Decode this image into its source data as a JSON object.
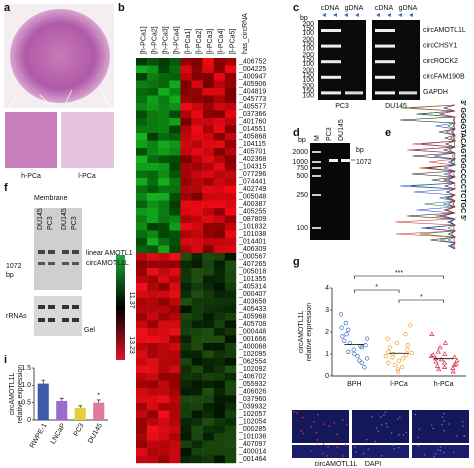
{
  "panels": [
    "a",
    "b",
    "c",
    "d",
    "e",
    "f",
    "g",
    "h",
    "i"
  ],
  "a": {
    "insets": [
      "h-PCa",
      "l-PCa"
    ]
  },
  "b": {
    "columns": [
      "[h-PCa1]",
      "[h-PCa2]",
      "[h-PCa3]",
      "[h-PCa4]",
      "[l-PCa1]",
      "[l-PCa2]",
      "[l-PCa3]",
      "[l-PCa4]",
      "[l-PCa5]"
    ],
    "header": "has_circRNA",
    "rows": [
      "_406752",
      "_004225",
      "_400947",
      "_405906",
      "_404819",
      "_045773",
      "_405577",
      "_037366",
      "_401760",
      "_014551",
      "_405868",
      "_104115",
      "_405701",
      "_402368",
      "_104315",
      "_077296",
      "_074441",
      "_402749",
      "_005048",
      "_400387",
      "_405255",
      "_087809",
      "_101832",
      "_101038",
      "_014401",
      "_406309",
      "_000567",
      "_407265",
      "_005018",
      "_101355",
      "_405314",
      "_000407",
      "_403658",
      "_405433",
      "_405968",
      "_405708",
      "_000448",
      "_001666",
      "_400068",
      "_102095",
      "_062554",
      "_102092",
      "_406702",
      "_055932",
      "_406026",
      "_037960",
      "_039932",
      "_102057",
      "_102054",
      "_000285",
      "_101036",
      "_407097",
      "_400014",
      "_001464"
    ],
    "scale": [
      "11.37",
      "13.23"
    ]
  },
  "c": {
    "lanes": [
      "cDNA",
      "gDNA"
    ],
    "unit": "bp",
    "ladder": [
      "200",
      "150",
      "100"
    ],
    "genes": [
      "circAMOTL1L",
      "circCHSY1",
      "circROCK2",
      "circFAM190B",
      "GAPDH"
    ],
    "cells": [
      "PC3",
      "DU145"
    ]
  },
  "d": {
    "unit": "bp",
    "ladder": [
      "2000",
      "1000",
      "750",
      "500",
      "250",
      "100"
    ],
    "lanes": [
      "M",
      "PC3",
      "DU145"
    ],
    "band": "1072"
  },
  "e": {
    "sequence": "3' GGGGTACAGTGGCCCCTCTGC 5'"
  },
  "f": {
    "title": "Membrane",
    "lanes": [
      "DU145",
      "PC3",
      "DU145",
      "PC3"
    ],
    "size": "1072",
    "unit": "bp",
    "bands": [
      "linear AMOTL1",
      "circAMOTL1L"
    ],
    "rrna": "rRNAs",
    "gel": "Gel"
  },
  "h": {
    "stains": [
      "circAMOTL1L",
      "DAPI"
    ]
  },
  "chart_data": [
    {
      "type": "strip",
      "ylabel": [
        "circAMOTL1L",
        "relative expression"
      ],
      "categories": [
        "BPH",
        "l-PCa",
        "h-PCa"
      ],
      "colors": [
        "#3a6fc4",
        "#f0a030",
        "#d8304a"
      ],
      "values": [
        [
          2.8,
          2.4,
          2.2,
          2.1,
          1.9,
          1.8,
          1.7,
          1.6,
          1.5,
          1.4,
          1.35,
          1.3,
          1.2,
          1.1,
          1.0,
          0.9,
          0.8,
          0.7,
          0.6,
          0.4
        ],
        [
          2.3,
          1.9,
          1.7,
          1.5,
          1.4,
          1.3,
          1.2,
          1.1,
          1.05,
          1.0,
          0.95,
          0.9,
          0.85,
          0.8,
          0.7,
          0.6,
          0.5,
          0.4,
          0.3,
          0.2
        ],
        [
          1.9,
          1.5,
          1.3,
          1.1,
          1.0,
          0.95,
          0.9,
          0.85,
          0.8,
          0.75,
          0.7,
          0.65,
          0.6,
          0.55,
          0.5,
          0.45,
          0.4,
          0.35,
          0.3,
          0.2
        ]
      ],
      "ylim": [
        0,
        4
      ],
      "yticks": [
        0,
        1,
        2,
        3,
        4
      ],
      "annotations": [
        "***",
        "*",
        "*"
      ]
    },
    {
      "type": "bar",
      "ylabel": [
        "circAMOTL1L",
        "relative expression"
      ],
      "categories": [
        "RWPE-1",
        "LNCaP",
        "PC3",
        "DU145"
      ],
      "colors": [
        "#3b5ba9",
        "#9b6ad0",
        "#e6cf3a",
        "#e07a98"
      ],
      "values": [
        1.05,
        0.55,
        0.35,
        0.5
      ],
      "errors": [
        0.1,
        0.08,
        0.06,
        0.08
      ],
      "ylim": [
        0,
        1.5
      ],
      "yticks": [
        0,
        0.5,
        {
          "value": 1,
          "label": "1.0"
        },
        1.5
      ],
      "annotations": [
        "*"
      ]
    }
  ]
}
